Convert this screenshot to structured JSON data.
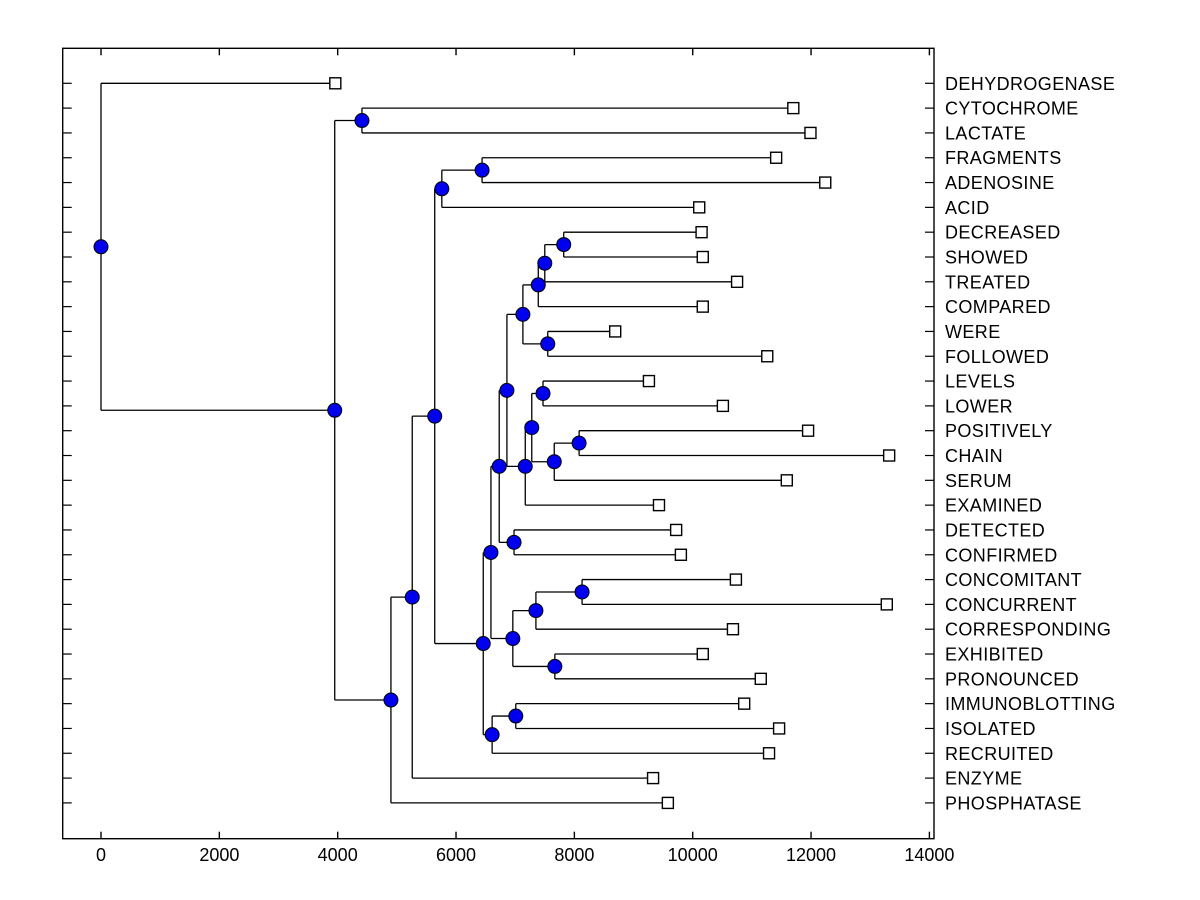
{
  "figure": {
    "background": "#ffffff",
    "frame_color": "#000000",
    "edge_color": "#000000",
    "internal_node_fill": "#0000ee",
    "internal_node_edge": "#000000",
    "leaf_marker_fill": "#ffffff",
    "leaf_marker_edge": "#000000"
  },
  "chart_data": {
    "type": "dendrogram",
    "orientation": "left-to-right",
    "title": "",
    "xlabel": "",
    "ylabel": "",
    "x_axis": {
      "range": [
        0,
        14000
      ],
      "ticks": [
        0,
        2000,
        4000,
        6000,
        8000,
        10000,
        12000,
        14000
      ],
      "tick_labels": [
        "0",
        "2000",
        "4000",
        "6000",
        "8000",
        "10000",
        "12000",
        "14000"
      ]
    },
    "grid": false,
    "legend": false,
    "leaves": [
      {
        "label": "DEHYDROGENASE",
        "value": 3960
      },
      {
        "label": "CYTOCHROME",
        "value": 11700
      },
      {
        "label": "LACTATE",
        "value": 11990
      },
      {
        "label": "FRAGMENTS",
        "value": 11410
      },
      {
        "label": "ADENOSINE",
        "value": 12240
      },
      {
        "label": "ACID",
        "value": 10110
      },
      {
        "label": "DECREASED",
        "value": 10150
      },
      {
        "label": "SHOWED",
        "value": 10170
      },
      {
        "label": "TREATED",
        "value": 10750
      },
      {
        "label": "COMPARED",
        "value": 10170
      },
      {
        "label": "WERE",
        "value": 8690
      },
      {
        "label": "FOLLOWED",
        "value": 11260
      },
      {
        "label": "LEVELS",
        "value": 9260
      },
      {
        "label": "LOWER",
        "value": 10510
      },
      {
        "label": "POSITIVELY",
        "value": 11950
      },
      {
        "label": "CHAIN",
        "value": 13320
      },
      {
        "label": "SERUM",
        "value": 11590
      },
      {
        "label": "EXAMINED",
        "value": 9430
      },
      {
        "label": "DETECTED",
        "value": 9720
      },
      {
        "label": "CONFIRMED",
        "value": 9800
      },
      {
        "label": "CONCOMITANT",
        "value": 10730
      },
      {
        "label": "CONCURRENT",
        "value": 13280
      },
      {
        "label": "CORRESPONDING",
        "value": 10680
      },
      {
        "label": "EXHIBITED",
        "value": 10170
      },
      {
        "label": "PRONOUNCED",
        "value": 11150
      },
      {
        "label": "IMMUNOBLOTTING",
        "value": 10870
      },
      {
        "label": "ISOLATED",
        "value": 11460
      },
      {
        "label": "RECRUITED",
        "value": 11290
      },
      {
        "label": "ENZYME",
        "value": 9330
      },
      {
        "label": "PHOSPHATASE",
        "value": 9580
      }
    ],
    "internal_nodes": [
      {
        "id": "n_root",
        "value": 0,
        "children": [
          "DEHYDROGENASE",
          "n_z1"
        ]
      },
      {
        "id": "n_z1",
        "value": 3950,
        "children": [
          "n_a",
          "n_z4"
        ]
      },
      {
        "id": "n_a",
        "value": 4410,
        "children": [
          "CYTOCHROME",
          "LACTATE"
        ]
      },
      {
        "id": "n_z4",
        "value": 4900,
        "children": [
          "n_z3",
          "PHOSPHATASE"
        ]
      },
      {
        "id": "n_z3",
        "value": 5260,
        "children": [
          "n_z2",
          "ENZYME"
        ]
      },
      {
        "id": "n_z2",
        "value": 5640,
        "children": [
          "n_faa",
          "n_s"
        ]
      },
      {
        "id": "n_faa",
        "value": 5760,
        "children": [
          "n_fa",
          "ACID"
        ]
      },
      {
        "id": "n_fa",
        "value": 6440,
        "children": [
          "FRAGMENTS",
          "ADENOSINE"
        ]
      },
      {
        "id": "n_s",
        "value": 6460,
        "children": [
          "n_o",
          "n_v"
        ]
      },
      {
        "id": "n_o",
        "value": 6590,
        "children": [
          "n_k",
          "n_r"
        ]
      },
      {
        "id": "n_k",
        "value": 6730,
        "children": [
          "n_g",
          "n_n"
        ]
      },
      {
        "id": "n_g",
        "value": 6860,
        "children": [
          "n_e",
          "n_l"
        ]
      },
      {
        "id": "n_e",
        "value": 7130,
        "children": [
          "n_d",
          "n_f"
        ]
      },
      {
        "id": "n_d",
        "value": 7390,
        "children": [
          "n_c",
          "COMPARED"
        ]
      },
      {
        "id": "n_c",
        "value": 7500,
        "children": [
          "n_b",
          "TREATED"
        ]
      },
      {
        "id": "n_b",
        "value": 7820,
        "children": [
          "DECREASED",
          "SHOWED"
        ]
      },
      {
        "id": "n_f",
        "value": 7550,
        "children": [
          "WERE",
          "FOLLOWED"
        ]
      },
      {
        "id": "n_l",
        "value": 7170,
        "children": [
          "n_i",
          "EXAMINED"
        ]
      },
      {
        "id": "n_i",
        "value": 7280,
        "children": [
          "n_h",
          "n_m"
        ]
      },
      {
        "id": "n_h",
        "value": 7470,
        "children": [
          "LEVELS",
          "LOWER"
        ]
      },
      {
        "id": "n_m",
        "value": 7660,
        "children": [
          "n_j",
          "SERUM"
        ]
      },
      {
        "id": "n_j",
        "value": 8080,
        "children": [
          "POSITIVELY",
          "CHAIN"
        ]
      },
      {
        "id": "n_n",
        "value": 6980,
        "children": [
          "DETECTED",
          "CONFIRMED"
        ]
      },
      {
        "id": "n_r",
        "value": 6960,
        "children": [
          "n_q",
          "n_t"
        ]
      },
      {
        "id": "n_q",
        "value": 7350,
        "children": [
          "n_p",
          "CORRESPONDING"
        ]
      },
      {
        "id": "n_p",
        "value": 8130,
        "children": [
          "CONCOMITANT",
          "CONCURRENT"
        ]
      },
      {
        "id": "n_t",
        "value": 7670,
        "children": [
          "EXHIBITED",
          "PRONOUNCED"
        ]
      },
      {
        "id": "n_v",
        "value": 6610,
        "children": [
          "n_u",
          "RECRUITED"
        ]
      },
      {
        "id": "n_u",
        "value": 7010,
        "children": [
          "IMMUNOBLOTTING",
          "ISOLATED"
        ]
      }
    ]
  }
}
